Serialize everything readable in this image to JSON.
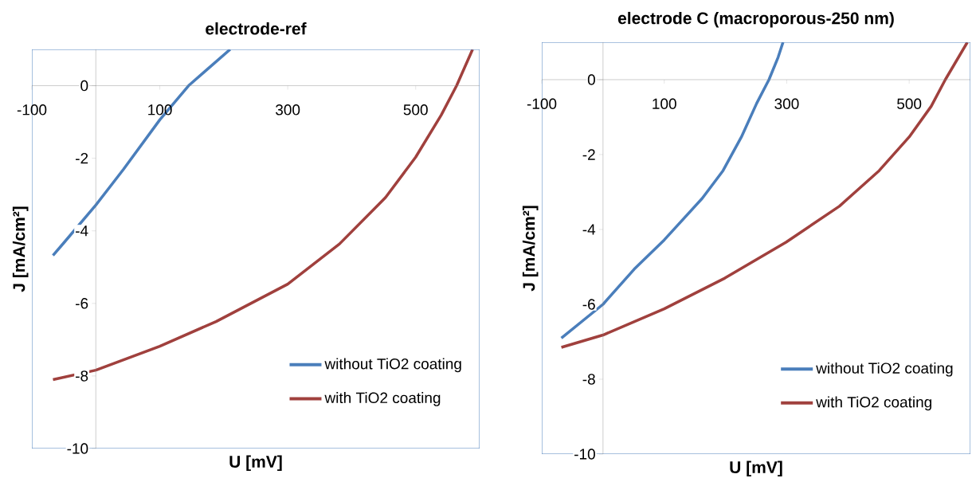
{
  "chart_data": [
    {
      "type": "line",
      "title": "electrode-ref",
      "xlabel": "U [mV]",
      "ylabel": "J [mA/cm²]",
      "xlim": [
        -100,
        600
      ],
      "ylim": [
        -10,
        1
      ],
      "xticks": [
        -100,
        100,
        300,
        500
      ],
      "yticks": [
        -10,
        -8,
        -6,
        -4,
        -2,
        0
      ],
      "legend": "bottom right",
      "grid": false,
      "series": [
        {
          "name": "without TiO2 coating",
          "color": "#4a7ebb",
          "x": [
            -67,
            -50,
            0,
            43,
            100,
            145,
            178,
            210
          ],
          "values": [
            -4.68,
            -4.33,
            -3.29,
            -2.31,
            -0.94,
            0,
            0.51,
            1
          ]
        },
        {
          "name": "with TiO2 coating",
          "color": "#a0403d",
          "x": [
            -67,
            0,
            100,
            188,
            300,
            381,
            453,
            500,
            540,
            564,
            589
          ],
          "values": [
            -8.1,
            -7.84,
            -7.18,
            -6.5,
            -5.47,
            -4.36,
            -3.08,
            -1.97,
            -0.81,
            0,
            1
          ]
        }
      ]
    },
    {
      "type": "line",
      "title": "electrode C (macroporous-250 nm)",
      "xlabel": "U [mV]",
      "ylabel": "J [mA/cm²]",
      "xlim": [
        -100,
        600
      ],
      "ylim": [
        -10,
        1
      ],
      "xticks": [
        -100,
        100,
        300,
        500
      ],
      "yticks": [
        -10,
        -8,
        -6,
        -4,
        -2,
        0
      ],
      "legend": "bottom right",
      "grid": false,
      "series": [
        {
          "name": "without TiO2 coating",
          "color": "#4a7ebb",
          "x": [
            -68,
            0,
            51,
            100,
            162,
            196,
            226,
            251,
            271,
            286,
            294
          ],
          "values": [
            -6.9,
            -6.0,
            -5.06,
            -4.28,
            -3.17,
            -2.43,
            -1.53,
            -0.63,
            0,
            0.6,
            1
          ]
        },
        {
          "name": "with TiO2 coating",
          "color": "#a0403d",
          "x": [
            -68,
            0,
            100,
            199,
            299,
            386,
            451,
            500,
            536,
            559,
            595
          ],
          "values": [
            -7.15,
            -6.82,
            -6.12,
            -5.3,
            -4.34,
            -3.38,
            -2.43,
            -1.53,
            -0.71,
            0,
            1
          ]
        }
      ]
    }
  ]
}
